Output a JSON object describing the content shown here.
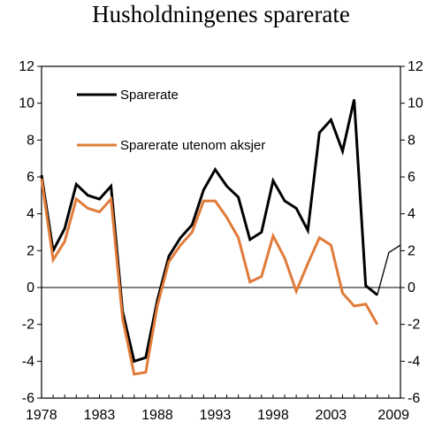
{
  "chart_data": {
    "type": "line",
    "title": "Husholdningenes sparerate",
    "xlabel": "",
    "ylabel": "",
    "xlim": [
      1978,
      2009
    ],
    "ylim": [
      -6,
      12
    ],
    "x_ticks": [
      1978,
      1983,
      1988,
      1993,
      1998,
      2003,
      2009
    ],
    "y_ticks": [
      -6,
      -4,
      -2,
      0,
      2,
      4,
      6,
      8,
      10,
      12
    ],
    "y_ticks_right": [
      -6,
      -4,
      -2,
      0,
      2,
      4,
      6,
      8,
      10,
      12
    ],
    "grid": false,
    "legend": "top-left",
    "series": [
      {
        "name": "Sparerate",
        "color": "#000000",
        "x": [
          1978,
          1979,
          1980,
          1981,
          1982,
          1983,
          1984,
          1985,
          1986,
          1987,
          1988,
          1989,
          1990,
          1991,
          1992,
          1993,
          1994,
          1995,
          1996,
          1997,
          1998,
          1999,
          2000,
          2001,
          2002,
          2003,
          2004,
          2005,
          2006,
          2007
        ],
        "y": [
          6.1,
          2.0,
          3.2,
          5.6,
          5.0,
          4.8,
          5.5,
          -1.3,
          -4.0,
          -3.8,
          -0.7,
          1.7,
          2.7,
          3.4,
          5.3,
          6.4,
          5.5,
          4.9,
          2.6,
          3.0,
          5.8,
          4.7,
          4.3,
          3.1,
          8.4,
          9.1,
          7.4,
          10.2,
          0.1,
          -0.4
        ]
      },
      {
        "name": "Sparerate utenom aksjer",
        "color": "#e07b39",
        "x": [
          1978,
          1979,
          1980,
          1981,
          1982,
          1983,
          1984,
          1985,
          1986,
          1987,
          1988,
          1989,
          1990,
          1991,
          1992,
          1993,
          1994,
          1995,
          1996,
          1997,
          1998,
          1999,
          2000,
          2001,
          2002,
          2003,
          2004,
          2005,
          2006,
          2007
        ],
        "y": [
          5.9,
          1.5,
          2.5,
          4.8,
          4.3,
          4.1,
          4.8,
          -1.7,
          -4.7,
          -4.6,
          -1.0,
          1.4,
          2.3,
          3.0,
          4.7,
          4.7,
          3.8,
          2.7,
          0.3,
          0.6,
          2.8,
          1.6,
          -0.2,
          1.3,
          2.7,
          2.3,
          -0.3,
          -1.0,
          -0.9,
          -2.0
        ]
      },
      {
        "name": "",
        "color": "#000000",
        "thin": true,
        "x": [
          2006,
          2007,
          2008,
          2009
        ],
        "y": [
          0.1,
          -0.4,
          1.9,
          2.3
        ]
      }
    ]
  }
}
